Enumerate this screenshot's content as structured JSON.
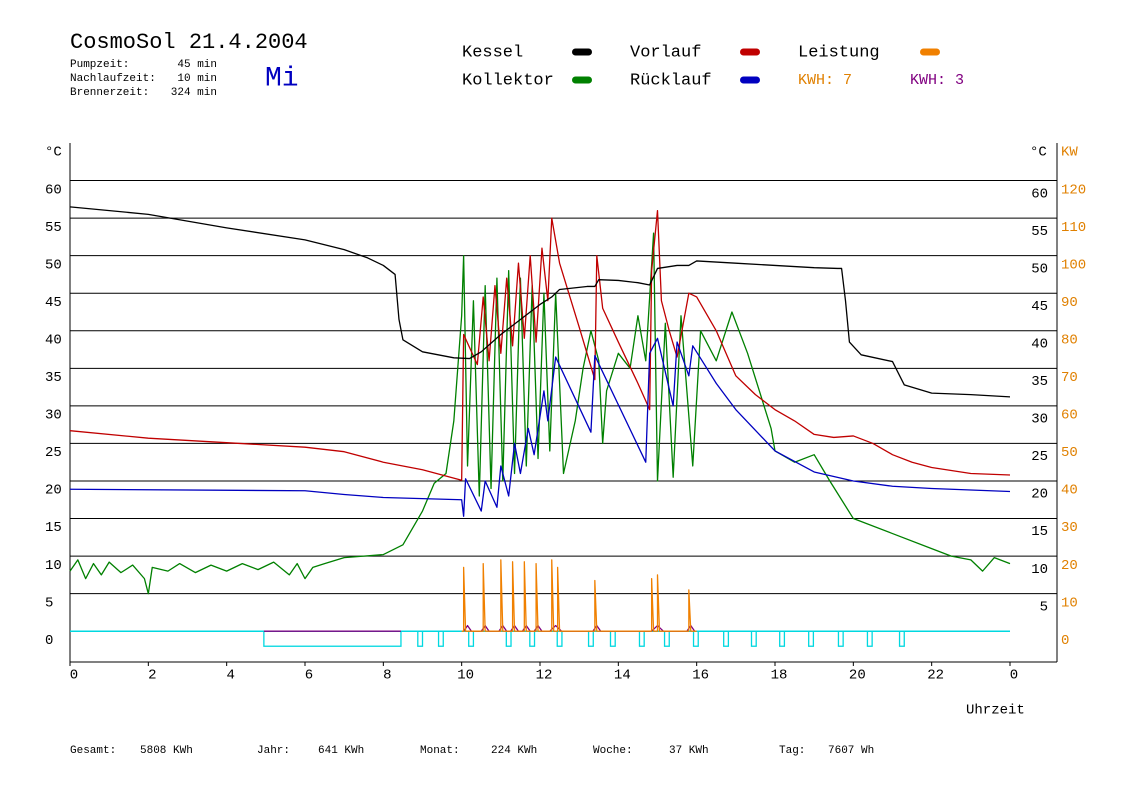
{
  "chart_data": {
    "type": "line",
    "title": "CosmoSol 21.4.2004",
    "info": [
      {
        "label": "Pumpzeit:",
        "value": "45 min"
      },
      {
        "label": "Nachlaufzeit:",
        "value": "10 min"
      },
      {
        "label": "Brennerzeit:",
        "value": "324 min"
      }
    ],
    "weekday": "Mi",
    "annotations": [
      {
        "text": "KWH: 7",
        "color": "#e08000"
      },
      {
        "text": "KWH: 3",
        "color": "#800080"
      }
    ],
    "ylabel": "°C",
    "y2label": "KW",
    "xlabel": "Uhrzeit",
    "xlim": [
      0,
      25.2
    ],
    "xticks": [
      0,
      2,
      4,
      6,
      8,
      10,
      12,
      14,
      16,
      18,
      20,
      22,
      {
        "value": 24,
        "label": "0"
      }
    ],
    "ylim": [
      -4.1,
      65
    ],
    "yticks": [
      0,
      5,
      10,
      15,
      20,
      25,
      30,
      35,
      40,
      45,
      50,
      55,
      60
    ],
    "y2lim": [
      -8.2,
      130
    ],
    "y2ticks": [
      0,
      10,
      20,
      30,
      40,
      50,
      60,
      70,
      80,
      90,
      100,
      110,
      120
    ],
    "grid": true,
    "series": [
      {
        "name": "Kessel",
        "color": "#000000",
        "x": [
          0,
          2,
          4,
          6,
          7,
          7.6,
          8,
          8.3,
          8.4,
          8.5,
          9,
          9.8,
          10.2,
          10.5,
          11,
          11.5,
          12,
          12.3,
          12.5,
          13.2,
          13.4,
          13.5,
          14,
          14.5,
          14.8,
          15,
          15.5,
          15.8,
          16,
          17,
          18,
          19,
          19.6,
          19.7,
          19.8,
          19.9,
          20.2,
          21,
          21.3,
          22,
          23,
          24
        ],
        "values": [
          56.5,
          55.5,
          53.7,
          52.1,
          50.8,
          49.7,
          48.7,
          47.5,
          41.5,
          38.8,
          37.2,
          36.4,
          36.3,
          37.2,
          39.5,
          41.5,
          43.5,
          44.5,
          45.5,
          45.9,
          45.9,
          46.8,
          46.7,
          46.4,
          46.1,
          48.3,
          48.7,
          48.7,
          49.3,
          49,
          48.7,
          48.4,
          48.3,
          48.3,
          44,
          38.5,
          36.8,
          35.9,
          32.8,
          31.7,
          31.5,
          31.2
        ]
      },
      {
        "name": "Kollektor",
        "color": "#008000",
        "x": [
          0,
          0.2,
          0.4,
          0.6,
          0.8,
          1,
          1.3,
          1.6,
          1.9,
          2,
          2.1,
          2.5,
          2.8,
          3.2,
          3.6,
          4,
          4.4,
          4.8,
          5.2,
          5.6,
          5.8,
          6,
          6.2,
          6.5,
          7,
          7.5,
          8,
          8.5,
          9,
          9.3,
          9.6,
          9.8,
          10,
          10.05,
          10.15,
          10.3,
          10.45,
          10.6,
          10.75,
          10.9,
          11.05,
          11.2,
          11.35,
          11.5,
          11.65,
          11.8,
          11.95,
          12.1,
          12.25,
          12.4,
          12.6,
          12.9,
          13.1,
          13.3,
          13.5,
          13.6,
          13.7,
          14,
          14.3,
          14.5,
          14.7,
          14.9,
          15,
          15.2,
          15.4,
          15.6,
          15.9,
          16.1,
          16.5,
          16.9,
          17.3,
          17.6,
          17.9,
          18,
          18.5,
          19,
          19.4,
          20,
          21,
          22,
          22.5,
          23,
          23.3,
          23.6,
          24
        ],
        "values": [
          8,
          9.5,
          7,
          9,
          7.5,
          9.2,
          7.8,
          8.8,
          7,
          5,
          8.5,
          8,
          9,
          7.8,
          8.8,
          8,
          9,
          8.2,
          9.2,
          7.5,
          9,
          7,
          8.5,
          9,
          9.8,
          10,
          10.2,
          11.5,
          16,
          19.7,
          21,
          28,
          42,
          50,
          22,
          44,
          18,
          46,
          19,
          47,
          20,
          48,
          21,
          47,
          22,
          46,
          23,
          45,
          24,
          45,
          21,
          28,
          35,
          40,
          36,
          25,
          32,
          37,
          35,
          42,
          36,
          53,
          20,
          41,
          20.5,
          42,
          22,
          40,
          36,
          42.5,
          37,
          32,
          27,
          24,
          22.5,
          23.5,
          20,
          15,
          13,
          11,
          10,
          9.5,
          8,
          9.8,
          9
        ]
      },
      {
        "name": "Vorlauf",
        "color": "#c00000",
        "x": [
          0,
          2,
          4,
          6,
          7,
          8,
          9,
          10,
          10.05,
          10.4,
          10.55,
          10.7,
          10.85,
          11,
          11.15,
          11.3,
          11.45,
          11.6,
          11.75,
          11.9,
          12.05,
          12.2,
          12.3,
          12.5,
          13,
          13.4,
          13.45,
          13.6,
          14,
          14.5,
          14.8,
          14.85,
          15,
          15.1,
          15.3,
          15.5,
          15.8,
          16,
          16.5,
          17,
          17.5,
          18,
          18.5,
          19,
          19.5,
          20,
          20.5,
          21,
          21.5,
          22,
          23,
          24
        ],
        "values": [
          26.7,
          25.7,
          25.1,
          24.5,
          23.9,
          22.5,
          21.5,
          20.1,
          39.5,
          35.5,
          44.5,
          36,
          46,
          37,
          47,
          38,
          49,
          39,
          50,
          38.5,
          51,
          44,
          55,
          49,
          40.5,
          33.5,
          50,
          43,
          38.5,
          33,
          29.5,
          48,
          56,
          44,
          40,
          36.5,
          45,
          44.5,
          40,
          34,
          31.5,
          29.5,
          28,
          26.2,
          25.8,
          26,
          25,
          23.5,
          22.5,
          21.8,
          21,
          20.8
        ]
      },
      {
        "name": "Rücklauf",
        "color": "#0000c0",
        "x": [
          0,
          6,
          7,
          8,
          10,
          10.05,
          10.1,
          10.5,
          10.6,
          10.9,
          11,
          11.2,
          11.35,
          11.5,
          11.7,
          11.85,
          12.1,
          12.2,
          12.4,
          13.3,
          13.4,
          14.7,
          14.8,
          15,
          15.4,
          15.5,
          15.8,
          15.9,
          16.5,
          17,
          18,
          19,
          20,
          21,
          22,
          24
        ],
        "values": [
          18.9,
          18.7,
          18.2,
          17.8,
          17.5,
          15.3,
          20.3,
          16,
          20,
          16.5,
          22,
          18,
          25,
          21,
          27,
          23.5,
          32,
          28,
          36.5,
          26.5,
          36.7,
          22.5,
          37,
          39,
          30,
          38.5,
          34,
          38,
          33,
          29.5,
          24,
          21.2,
          20,
          19.3,
          19,
          18.6
        ]
      },
      {
        "name": "Leistung",
        "color": "#f08000",
        "axis": "y2",
        "x": [
          10,
          10.05,
          10.05,
          10.1,
          10.55,
          10.55,
          10.6,
          11,
          11,
          11.05,
          11.3,
          11.3,
          11.35,
          11.6,
          11.6,
          11.65,
          11.9,
          11.9,
          11.95,
          12.3,
          12.3,
          12.35,
          12.45,
          12.45,
          12.5,
          13.4,
          13.4,
          13.45,
          14.85,
          14.85,
          14.9,
          15,
          15,
          15.05,
          15.8,
          15.8,
          15.85,
          16
        ],
        "values": [
          0,
          0,
          17,
          0,
          0,
          18,
          0,
          0,
          19,
          0,
          0,
          18.5,
          0,
          0,
          18.5,
          0,
          0,
          18,
          0,
          0,
          19,
          0,
          0,
          17,
          0,
          0,
          13.5,
          0,
          0,
          14,
          0,
          0,
          15,
          0,
          0,
          11,
          0,
          0
        ]
      },
      {
        "color": "#800080",
        "axis": "y2",
        "x": [
          4.95,
          8.45,
          null,
          10.05,
          10.15,
          10.25,
          10.5,
          10.6,
          10.7,
          10.95,
          11.05,
          11.15,
          11.25,
          11.35,
          11.45,
          11.55,
          11.65,
          11.75,
          11.85,
          11.95,
          12.05,
          12.25,
          12.4,
          12.55,
          13.35,
          13.45,
          13.55,
          14.85,
          15.0,
          15.15,
          15.75,
          15.85,
          15.95
        ],
        "values": [
          0,
          0,
          null,
          0,
          1.5,
          0,
          0,
          1.5,
          0,
          0,
          1.5,
          0,
          0,
          1.5,
          0,
          0,
          1.5,
          0,
          0,
          1.5,
          0,
          0,
          1.5,
          0,
          0,
          1.5,
          0,
          0,
          1.5,
          0,
          0,
          1.5,
          0
        ]
      }
    ],
    "pump": {
      "color": "#00d8e0",
      "level": -2,
      "intervals": [
        [
          4.95,
          8.45
        ],
        [
          8.88,
          9.0
        ],
        [
          9.41,
          9.53
        ],
        [
          10.18,
          10.3
        ],
        [
          11.14,
          11.26
        ],
        [
          11.74,
          11.86
        ],
        [
          12.44,
          12.56
        ],
        [
          13.24,
          13.36
        ],
        [
          13.8,
          13.92
        ],
        [
          14.54,
          14.66
        ],
        [
          15.18,
          15.3
        ],
        [
          15.92,
          16.04
        ],
        [
          16.69,
          16.81
        ],
        [
          17.4,
          17.52
        ],
        [
          18.12,
          18.24
        ],
        [
          18.86,
          18.98
        ],
        [
          19.62,
          19.74
        ],
        [
          20.36,
          20.48
        ],
        [
          21.18,
          21.3
        ]
      ]
    },
    "footer": [
      {
        "label": "Gesamt:",
        "value": "5808 KWh"
      },
      {
        "label": "Jahr:",
        "value": "641 KWh"
      },
      {
        "label": "Monat:",
        "value": "224 KWh"
      },
      {
        "label": "Woche:",
        "value": "37 KWh"
      },
      {
        "label": "Tag:",
        "value": "7607 Wh"
      }
    ]
  }
}
